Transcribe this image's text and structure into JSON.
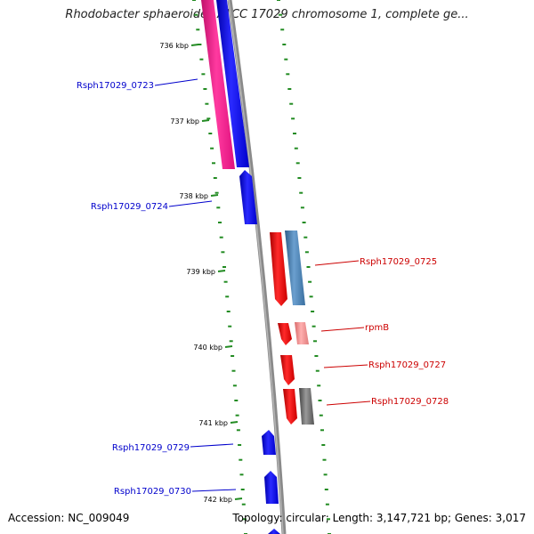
{
  "title": "Rhodobacter sphaeroides ATCC 17029 chromosome 1, complete ge...",
  "accession": "Accession: NC_009049",
  "topology": "Topology: circular; Length: 3,147,721 bp; Genes: 3,017",
  "ticks": [
    "736 kbp",
    "737 kbp",
    "738 kbp",
    "739 kbp",
    "740 kbp",
    "741 kbp",
    "742 kbp"
  ],
  "genes": [
    {
      "label": "Rsph17029_0723",
      "strand": "minus",
      "color": "#0000cc"
    },
    {
      "label": "Rsph17029_0724",
      "strand": "minus",
      "color": "#0000cc"
    },
    {
      "label": "Rsph17029_0725",
      "strand": "plus",
      "color": "#cc0000"
    },
    {
      "label": "rpmB",
      "strand": "plus",
      "color": "#cc0000"
    },
    {
      "label": "Rsph17029_0727",
      "strand": "plus",
      "color": "#cc0000"
    },
    {
      "label": "Rsph17029_0728",
      "strand": "plus",
      "color": "#cc0000"
    },
    {
      "label": "Rsph17029_0729",
      "strand": "minus",
      "color": "#0000cc"
    },
    {
      "label": "Rsph17029_0730",
      "strand": "minus",
      "color": "#0000cc"
    }
  ],
  "colors": {
    "backbone": "#8a8a8a",
    "dots": "#228b22",
    "minus_strand": "#0000ff",
    "plus_strand": "#ff0000",
    "feature_pink": "#ff1493",
    "feature_steelblue": "#4682b4",
    "feature_lightred": "#f08080",
    "feature_gray": "#666666"
  }
}
